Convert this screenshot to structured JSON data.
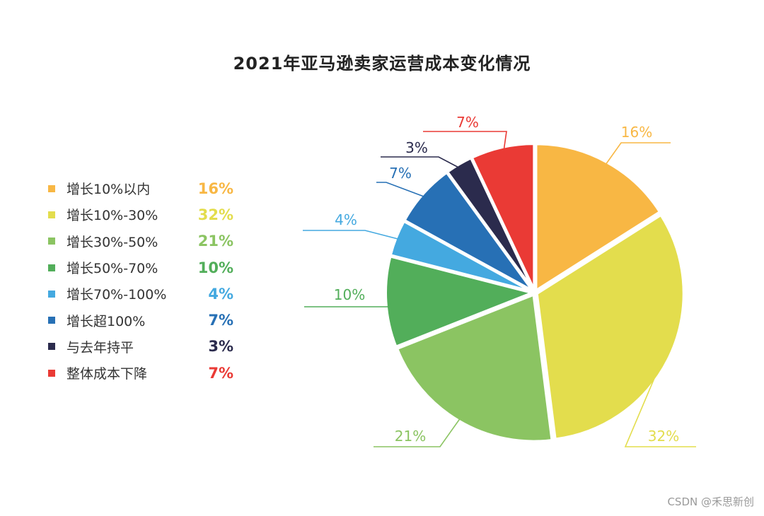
{
  "chart_data": {
    "type": "pie",
    "title": "2021年亚马逊卖家运营成本变化情况",
    "legend_position": "left",
    "slices": [
      {
        "label": "增长10%以内",
        "value": 16,
        "value_label": "16%",
        "color": "#F8B744"
      },
      {
        "label": "增长10%-30%",
        "value": 32,
        "value_label": "32%",
        "color": "#E3DD4D"
      },
      {
        "label": "增长30%-50%",
        "value": 21,
        "value_label": "21%",
        "color": "#8BC462"
      },
      {
        "label": "增长50%-70%",
        "value": 10,
        "value_label": "10%",
        "color": "#52AE5A"
      },
      {
        "label": "增长70%-100%",
        "value": 4,
        "value_label": "4%",
        "color": "#44A9E0"
      },
      {
        "label": "增长超100%",
        "value": 7,
        "value_label": "7%",
        "color": "#2770B5"
      },
      {
        "label": "与去年持平",
        "value": 3,
        "value_label": "3%",
        "color": "#2B2B4D"
      },
      {
        "label": "整体成本下降",
        "value": 7,
        "value_label": "7%",
        "color": "#EA3A35"
      }
    ]
  },
  "watermark": "CSDN @禾思新创"
}
